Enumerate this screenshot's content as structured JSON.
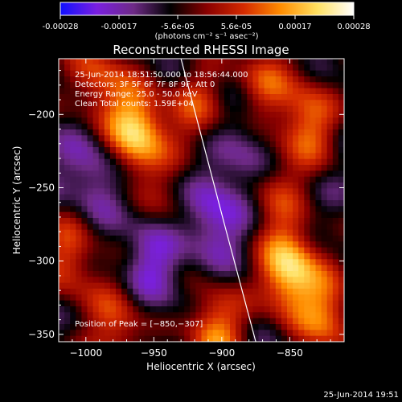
{
  "colorbar": {
    "ticks": [
      "-0.00028",
      "-0.00017",
      "-5.6e-05",
      "5.6e-05",
      "0.00017",
      "0.00028"
    ],
    "unit_label": "(photons cm⁻² s⁻¹ asec⁻²)",
    "colormap_stops": [
      "#1010ff",
      "#7a1fe0",
      "#6e2a86",
      "#000000",
      "#8a0000",
      "#d42a00",
      "#ff8c00",
      "#ffe060",
      "#ffffff"
    ]
  },
  "chart_data": {
    "type": "heatmap",
    "title": "Reconstructed RHESSI Image",
    "xlabel": "Heliocentric X (arcsec)",
    "ylabel": "Heliocentric Y (arcsec)",
    "xlim": [
      -1020,
      -810
    ],
    "ylim": [
      -355,
      -162
    ],
    "xticks": [
      "−1000",
      "−950",
      "−900",
      "−850"
    ],
    "xtick_values": [
      -1000,
      -950,
      -900,
      -850
    ],
    "yticks": [
      "−200",
      "−250",
      "−300",
      "−350"
    ],
    "ytick_values": [
      -200,
      -250,
      -300,
      -350
    ],
    "value_range": [
      -0.00028,
      0.00028
    ],
    "sources": [
      {
        "x": -963,
        "y": -212,
        "amp": 1.0
      },
      {
        "x": -850,
        "y": -307,
        "amp": 1.0
      },
      {
        "x": -837,
        "y": -205,
        "amp": 0.65
      },
      {
        "x": -918,
        "y": -195,
        "amp": 0.45
      },
      {
        "x": -905,
        "y": -347,
        "amp": 0.7
      },
      {
        "x": -1012,
        "y": -297,
        "amp": 0.55
      },
      {
        "x": -992,
        "y": -175,
        "amp": 0.55
      },
      {
        "x": -870,
        "y": -178,
        "amp": 0.5
      },
      {
        "x": -862,
        "y": -252,
        "amp": 0.4
      },
      {
        "x": -978,
        "y": -345,
        "amp": 0.55
      },
      {
        "x": -938,
        "y": -262,
        "amp": 0.25
      },
      {
        "x": -822,
        "y": -338,
        "amp": 0.6
      },
      {
        "x": -905,
        "y": -270,
        "amp": -0.45
      },
      {
        "x": -995,
        "y": -240,
        "amp": -0.35
      },
      {
        "x": -950,
        "y": -300,
        "amp": -0.4
      },
      {
        "x": -880,
        "y": -222,
        "amp": -0.3
      }
    ],
    "limb_line": [
      [
        -930,
        -162
      ],
      [
        -915,
        -215
      ],
      [
        -898,
        -275
      ],
      [
        -875,
        -355
      ]
    ],
    "annotations": {
      "time": "25-Jun-2014 18:51:50.000 to 18:56:44.000",
      "detectors": "Detectors: 3F 5F 6F 7F 8F 9F, Att 0",
      "energy": "Energy Range: 25.0 - 50.0 keV",
      "clean": "Clean     Total counts: 1.59E+04",
      "peak": "Position of Peak = [−850,−307]"
    }
  },
  "footer": {
    "timestamp": "25-Jun-2014 19:51"
  }
}
